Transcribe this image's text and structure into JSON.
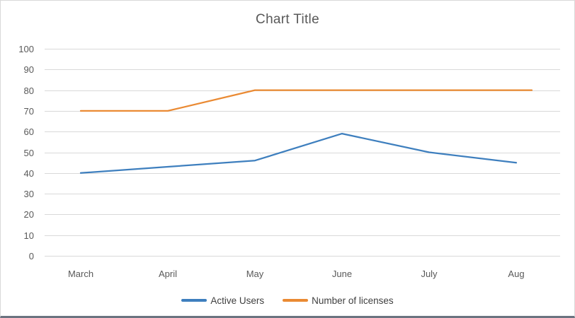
{
  "chart_data": {
    "type": "line",
    "title": "Chart Title",
    "categories": [
      "March",
      "April",
      "May",
      "June",
      "July",
      "Aug"
    ],
    "series": [
      {
        "name": "Active Users",
        "color": "#3e7fbe",
        "values": [
          40,
          43,
          46,
          59,
          50,
          45
        ]
      },
      {
        "name": "Number of licenses",
        "color": "#ea8a33",
        "values": [
          70,
          70,
          80,
          80,
          80,
          80
        ]
      }
    ],
    "ylim": [
      0,
      100
    ],
    "yticks": [
      0,
      10,
      20,
      30,
      40,
      50,
      60,
      70,
      80,
      90,
      100
    ],
    "xlabel": "",
    "ylabel": "",
    "grid": "horizontal",
    "legend_position": "bottom",
    "colors": {
      "title_text": "#595959",
      "axis_text": "#595959",
      "legend_text": "#3f3f3f",
      "gridline": "#d9d9d9",
      "background": "#ffffff"
    }
  }
}
